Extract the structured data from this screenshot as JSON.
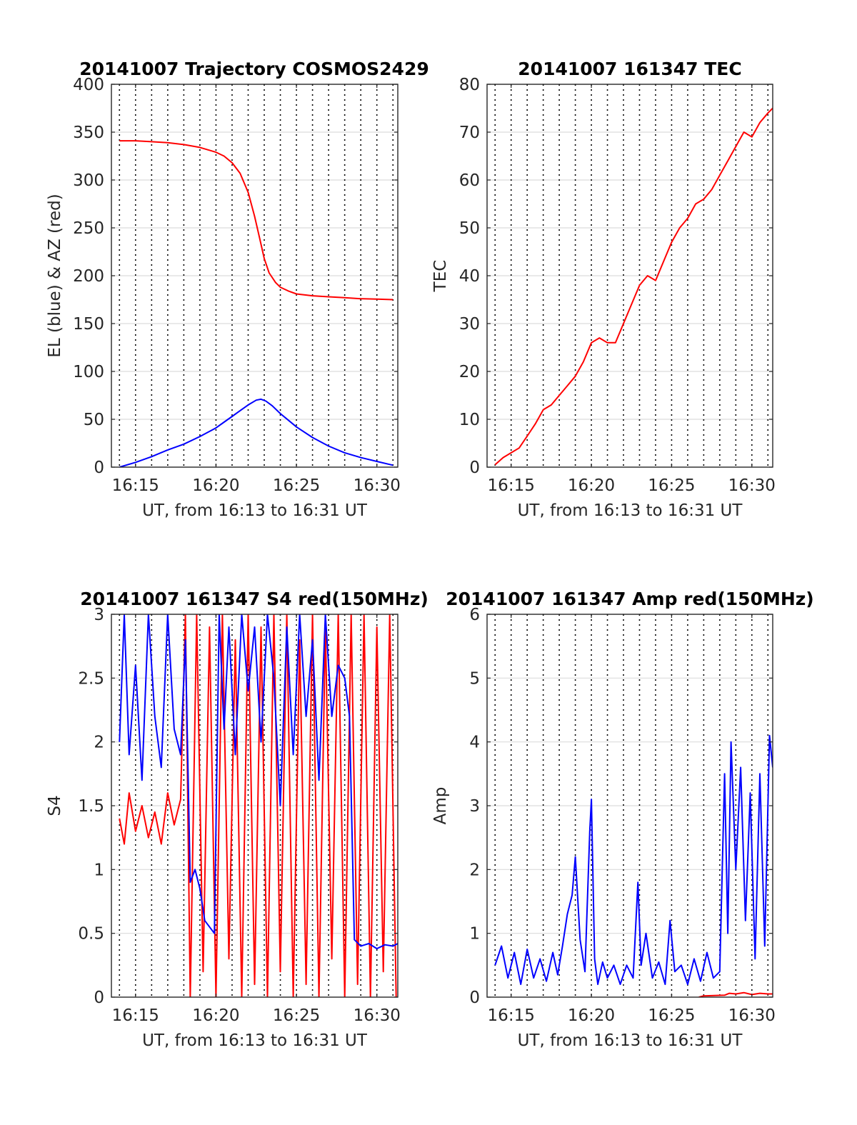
{
  "figure": {
    "background": "#ffffff"
  },
  "chart_data": [
    {
      "id": "trajectory",
      "type": "line",
      "title": "20141007 Trajectory COSMOS2429",
      "xlabel": "UT, from 16:13 to 16:31 UT",
      "ylabel": "EL (blue) & AZ (red)",
      "xlim_minutes": [
        13.5,
        31.3
      ],
      "ylim": [
        0,
        400
      ],
      "xticks": [
        {
          "v": 15,
          "label": "16:15"
        },
        {
          "v": 20,
          "label": "16:20"
        },
        {
          "v": 25,
          "label": "16:25"
        },
        {
          "v": 30,
          "label": "16:30"
        }
      ],
      "yticks": [
        {
          "v": 0,
          "label": "0"
        },
        {
          "v": 50,
          "label": "50"
        },
        {
          "v": 100,
          "label": "100"
        },
        {
          "v": 150,
          "label": "150"
        },
        {
          "v": 200,
          "label": "200"
        },
        {
          "v": 250,
          "label": "250"
        },
        {
          "v": 300,
          "label": "300"
        },
        {
          "v": 350,
          "label": "350"
        },
        {
          "v": 400,
          "label": "400"
        }
      ],
      "grid": {
        "horizontal": true,
        "vertical_dotted_every_minutes": 1
      },
      "series": [
        {
          "color": "#ff0000",
          "x": [
            14.0,
            15.0,
            16.0,
            17.0,
            18.0,
            19.0,
            20.0,
            20.5,
            21.0,
            21.5,
            22.0,
            22.4,
            22.7,
            23.0,
            23.3,
            23.7,
            24.0,
            24.5,
            25.0,
            26.0,
            27.0,
            28.0,
            29.0,
            30.0,
            31.0
          ],
          "values": [
            341,
            341,
            340,
            339,
            337,
            334,
            329,
            325,
            318,
            307,
            287,
            262,
            240,
            218,
            203,
            193,
            188,
            184,
            181,
            179,
            178,
            177,
            176,
            175.5,
            175
          ]
        },
        {
          "color": "#0000ff",
          "x": [
            14.0,
            15.0,
            16.0,
            17.0,
            18.0,
            19.0,
            20.0,
            20.5,
            21.0,
            21.5,
            22.0,
            22.5,
            22.8,
            23.1,
            23.5,
            24.0,
            24.5,
            25.0,
            26.0,
            27.0,
            28.0,
            29.0,
            30.0,
            31.0
          ],
          "values": [
            0,
            5,
            11,
            18,
            24,
            32,
            41,
            47,
            53,
            59,
            65,
            70,
            71,
            69,
            64,
            56,
            49,
            42,
            31,
            22,
            15,
            10,
            6,
            2
          ]
        }
      ]
    },
    {
      "id": "tec",
      "type": "line",
      "title": "20141007 161347 TEC",
      "xlabel": "UT, from 16:13 to 16:31 UT",
      "ylabel": "TEC",
      "xlim_minutes": [
        13.5,
        31.3
      ],
      "ylim": [
        0,
        80
      ],
      "xticks": [
        {
          "v": 15,
          "label": "16:15"
        },
        {
          "v": 20,
          "label": "16:20"
        },
        {
          "v": 25,
          "label": "16:25"
        },
        {
          "v": 30,
          "label": "16:30"
        }
      ],
      "yticks": [
        {
          "v": 0,
          "label": "0"
        },
        {
          "v": 10,
          "label": "10"
        },
        {
          "v": 20,
          "label": "20"
        },
        {
          "v": 30,
          "label": "30"
        },
        {
          "v": 40,
          "label": "40"
        },
        {
          "v": 50,
          "label": "50"
        },
        {
          "v": 60,
          "label": "60"
        },
        {
          "v": 70,
          "label": "70"
        },
        {
          "v": 80,
          "label": "80"
        }
      ],
      "grid": {
        "horizontal": true,
        "vertical_dotted_every_minutes": 1
      },
      "series": [
        {
          "color": "#ff0000",
          "x": [
            14.0,
            14.5,
            15.0,
            15.5,
            16.0,
            16.5,
            17.0,
            17.5,
            18.0,
            18.5,
            19.0,
            19.5,
            20.0,
            20.5,
            21.0,
            21.5,
            22.0,
            22.5,
            23.0,
            23.5,
            24.0,
            24.5,
            25.0,
            25.5,
            26.0,
            26.5,
            27.0,
            27.5,
            28.0,
            28.5,
            29.0,
            29.5,
            30.0,
            30.5,
            31.0,
            31.3
          ],
          "values": [
            0.5,
            2,
            3,
            4,
            6.5,
            9,
            12,
            13,
            15,
            17,
            19,
            22,
            26,
            27,
            26,
            26,
            30,
            34,
            38,
            40,
            39,
            43,
            47,
            50,
            52,
            55,
            56,
            58,
            61,
            64,
            67,
            70,
            69,
            72,
            74,
            75
          ]
        }
      ]
    },
    {
      "id": "s4",
      "type": "line",
      "title": "20141007 161347 S4 red(150MHz)",
      "xlabel": "UT, from 16:13 to 16:31 UT",
      "ylabel": "S4",
      "xlim_minutes": [
        13.5,
        31.3
      ],
      "ylim": [
        0,
        3
      ],
      "xticks": [
        {
          "v": 15,
          "label": "16:15"
        },
        {
          "v": 20,
          "label": "16:20"
        },
        {
          "v": 25,
          "label": "16:25"
        },
        {
          "v": 30,
          "label": "16:30"
        }
      ],
      "yticks": [
        {
          "v": 0,
          "label": "0"
        },
        {
          "v": 0.5,
          "label": "0.5"
        },
        {
          "v": 1,
          "label": "1"
        },
        {
          "v": 1.5,
          "label": "1.5"
        },
        {
          "v": 2,
          "label": "2"
        },
        {
          "v": 2.5,
          "label": "2.5"
        },
        {
          "v": 3,
          "label": "3"
        }
      ],
      "grid": {
        "horizontal": true,
        "vertical_dotted_every_minutes": 1
      },
      "series": [
        {
          "color": "#ff0000",
          "x": [
            14.0,
            14.3,
            14.6,
            15.0,
            15.4,
            15.8,
            16.2,
            16.6,
            17.0,
            17.4,
            17.8,
            18.1,
            18.4,
            18.8,
            19.2,
            19.6,
            20.0,
            20.4,
            20.8,
            21.2,
            21.6,
            22.0,
            22.4,
            22.8,
            23.2,
            23.6,
            24.0,
            24.4,
            24.8,
            25.2,
            25.6,
            26.0,
            26.4,
            26.8,
            27.2,
            27.6,
            28.0,
            28.4,
            28.8,
            29.2,
            29.6,
            30.0,
            30.4,
            30.8,
            31.2
          ],
          "values": [
            1.4,
            1.2,
            1.6,
            1.3,
            1.5,
            1.25,
            1.45,
            1.2,
            1.6,
            1.35,
            1.55,
            3.0,
            0.0,
            3.0,
            0.2,
            2.9,
            0.0,
            3.0,
            0.3,
            2.8,
            0.0,
            3.0,
            0.1,
            2.9,
            0.0,
            3.0,
            0.2,
            3.0,
            0.0,
            2.8,
            0.1,
            3.0,
            0.0,
            2.9,
            0.3,
            3.0,
            0.0,
            3.0,
            0.1,
            3.0,
            0.0,
            2.9,
            0.2,
            3.0,
            0.0
          ]
        },
        {
          "color": "#0000ff",
          "x": [
            14.0,
            14.3,
            14.6,
            15.0,
            15.4,
            15.8,
            16.2,
            16.6,
            17.0,
            17.4,
            17.8,
            18.1,
            18.4,
            18.7,
            19.0,
            19.3,
            19.6,
            19.9,
            20.2,
            20.5,
            20.8,
            21.2,
            21.6,
            22.0,
            22.4,
            22.8,
            23.2,
            23.6,
            24.0,
            24.4,
            24.8,
            25.2,
            25.6,
            26.0,
            26.4,
            26.8,
            27.2,
            27.6,
            28.0,
            28.3,
            28.6,
            29.0,
            29.5,
            30.0,
            30.5,
            31.0,
            31.3
          ],
          "values": [
            2.0,
            3.0,
            1.9,
            2.6,
            1.7,
            3.0,
            2.2,
            1.8,
            3.0,
            2.1,
            1.9,
            2.8,
            0.9,
            1.0,
            0.85,
            0.6,
            0.55,
            0.5,
            3.0,
            2.1,
            2.9,
            1.9,
            3.0,
            2.4,
            2.9,
            2.0,
            3.0,
            2.5,
            1.5,
            2.9,
            1.9,
            3.0,
            2.2,
            2.8,
            1.7,
            3.0,
            2.2,
            2.6,
            2.5,
            2.2,
            0.45,
            0.4,
            0.42,
            0.38,
            0.41,
            0.4,
            0.42
          ]
        }
      ]
    },
    {
      "id": "amp",
      "type": "line",
      "title": "20141007 161347 Amp red(150MHz)",
      "xlabel": "UT, from 16:13 to 16:31 UT",
      "ylabel": "Amp",
      "xlim_minutes": [
        13.5,
        31.3
      ],
      "ylim": [
        0,
        6
      ],
      "xticks": [
        {
          "v": 15,
          "label": "16:15"
        },
        {
          "v": 20,
          "label": "16:20"
        },
        {
          "v": 25,
          "label": "16:25"
        },
        {
          "v": 30,
          "label": "16:30"
        }
      ],
      "yticks": [
        {
          "v": 0,
          "label": "0"
        },
        {
          "v": 1,
          "label": "1"
        },
        {
          "v": 2,
          "label": "2"
        },
        {
          "v": 3,
          "label": "3"
        },
        {
          "v": 4,
          "label": "4"
        },
        {
          "v": 5,
          "label": "5"
        },
        {
          "v": 6,
          "label": "6"
        }
      ],
      "grid": {
        "horizontal": true,
        "vertical_dotted_every_minutes": 1
      },
      "series": [
        {
          "color": "#ff0000",
          "x": [
            26.7,
            27.0,
            28.3,
            28.6,
            29.0,
            29.5,
            30.0,
            30.5,
            31.0,
            31.3
          ],
          "values": [
            0.0,
            0.02,
            0.03,
            0.06,
            0.05,
            0.07,
            0.04,
            0.06,
            0.05,
            0.05
          ]
        },
        {
          "color": "#0000ff",
          "x": [
            14.0,
            14.4,
            14.8,
            15.2,
            15.6,
            16.0,
            16.4,
            16.8,
            17.2,
            17.6,
            17.9,
            18.2,
            18.5,
            18.8,
            19.0,
            19.3,
            19.6,
            19.9,
            20.0,
            20.2,
            20.4,
            20.7,
            21.0,
            21.4,
            21.8,
            22.2,
            22.6,
            22.9,
            23.1,
            23.4,
            23.8,
            24.2,
            24.6,
            24.9,
            25.2,
            25.6,
            26.0,
            26.4,
            26.8,
            27.2,
            27.6,
            28.0,
            28.3,
            28.5,
            28.7,
            29.0,
            29.3,
            29.6,
            29.9,
            30.2,
            30.5,
            30.8,
            31.1,
            31.3
          ],
          "values": [
            0.5,
            0.8,
            0.3,
            0.7,
            0.2,
            0.75,
            0.3,
            0.6,
            0.25,
            0.7,
            0.35,
            0.8,
            1.3,
            1.6,
            2.2,
            0.9,
            0.4,
            2.6,
            3.1,
            0.6,
            0.2,
            0.55,
            0.3,
            0.5,
            0.2,
            0.5,
            0.3,
            1.8,
            0.5,
            1.0,
            0.3,
            0.55,
            0.2,
            1.2,
            0.4,
            0.5,
            0.2,
            0.6,
            0.25,
            0.7,
            0.3,
            0.4,
            3.5,
            1.0,
            4.0,
            2.0,
            3.6,
            1.2,
            3.2,
            0.6,
            3.5,
            0.8,
            4.1,
            3.6
          ]
        }
      ]
    }
  ]
}
